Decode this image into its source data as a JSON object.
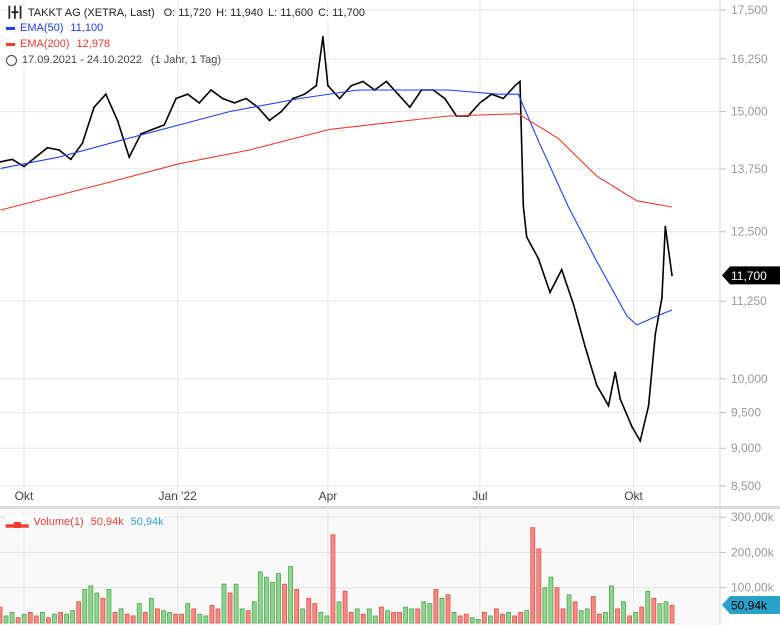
{
  "header": {
    "instrument": "TAKKT AG (XETRA, Last)",
    "open": "O: 11,720",
    "high": "H: 11,940",
    "low": "L: 11,600",
    "close": "C: 11,700",
    "ema50_label": "EMA(50)",
    "ema50_value": "11,100",
    "ema200_label": "EMA(200)",
    "ema200_value": "12,978",
    "range": "17.09.2021 - 24.10.2022",
    "period": "(1 Jahr, 1 Tag)",
    "icons": [
      "ohlc-bars-icon",
      "clock-icon",
      "volume-bars-icon"
    ]
  },
  "volume_legend": {
    "label": "Volume(1)",
    "value1": "50,94k",
    "value2": "50,94k"
  },
  "colors": {
    "ema50": "#1f3fff",
    "ema200": "#f03a2e",
    "price": "#000000",
    "up": "#8fd48f",
    "down": "#f68a84",
    "last_badge": "#000000",
    "volume_badge": "#2aa0c8"
  },
  "chart_data": [
    {
      "type": "line",
      "scale": "log",
      "ylim": [
        8250,
        17800
      ],
      "yticks": [
        "17,500",
        "16,250",
        "15,000",
        "13,750",
        "12,500",
        "11,250",
        "10,000",
        "9,500",
        "9,000",
        "8,500"
      ],
      "ytick_values": [
        17.5,
        16.25,
        15,
        13.75,
        12.5,
        11.25,
        10,
        9.5,
        9,
        8.5
      ],
      "xticks": [
        "Okt",
        "Jan '22",
        "Apr",
        "Jul",
        "Okt"
      ],
      "xtick_dates": [
        "2021-10-01",
        "2022-01-01",
        "2022-04-01",
        "2022-07-01",
        "2022-10-01"
      ],
      "grid": true,
      "last_price_label": "11,700",
      "last_price": 11.7,
      "series": [
        {
          "name": "TAKKT AG",
          "dates": [
            "2021-09-17",
            "2021-09-24",
            "2021-10-01",
            "2021-10-08",
            "2021-10-15",
            "2021-10-22",
            "2021-10-29",
            "2021-11-05",
            "2021-11-12",
            "2021-11-19",
            "2021-11-26",
            "2021-12-03",
            "2021-12-10",
            "2021-12-17",
            "2021-12-24",
            "2021-12-31",
            "2022-01-07",
            "2022-01-14",
            "2022-01-21",
            "2022-01-28",
            "2022-02-04",
            "2022-02-11",
            "2022-02-18",
            "2022-02-25",
            "2022-03-04",
            "2022-03-11",
            "2022-03-18",
            "2022-03-25",
            "2022-03-29",
            "2022-04-01",
            "2022-04-08",
            "2022-04-15",
            "2022-04-22",
            "2022-04-29",
            "2022-05-06",
            "2022-05-13",
            "2022-05-20",
            "2022-05-27",
            "2022-06-03",
            "2022-06-10",
            "2022-06-17",
            "2022-06-24",
            "2022-07-01",
            "2022-07-08",
            "2022-07-15",
            "2022-07-22",
            "2022-07-25",
            "2022-07-27",
            "2022-07-29",
            "2022-08-05",
            "2022-08-12",
            "2022-08-19",
            "2022-08-26",
            "2022-09-02",
            "2022-09-09",
            "2022-09-16",
            "2022-09-20",
            "2022-09-23",
            "2022-09-30",
            "2022-10-05",
            "2022-10-10",
            "2022-10-14",
            "2022-10-18",
            "2022-10-20",
            "2022-10-24"
          ],
          "values": [
            13.9,
            13.95,
            13.8,
            14.0,
            14.2,
            14.15,
            13.95,
            14.3,
            15.1,
            15.4,
            14.8,
            14.0,
            14.5,
            14.6,
            14.7,
            15.3,
            15.4,
            15.2,
            15.5,
            15.3,
            15.2,
            15.3,
            15.1,
            14.8,
            15.0,
            15.3,
            15.4,
            15.6,
            16.8,
            15.6,
            15.3,
            15.6,
            15.7,
            15.5,
            15.7,
            15.4,
            15.1,
            15.5,
            15.5,
            15.3,
            14.9,
            14.9,
            15.2,
            15.4,
            15.3,
            15.6,
            15.7,
            13.0,
            12.4,
            12.0,
            11.4,
            11.8,
            11.2,
            10.5,
            9.9,
            9.6,
            10.1,
            9.7,
            9.3,
            9.1,
            9.6,
            10.7,
            11.3,
            12.6,
            11.7
          ]
        },
        {
          "name": "EMA(50)",
          "dates": [
            "2021-09-17",
            "2021-10-22",
            "2021-11-27",
            "2022-01-02",
            "2022-02-01",
            "2022-03-15",
            "2022-04-19",
            "2022-06-12",
            "2022-07-12",
            "2022-07-24",
            "2022-08-05",
            "2022-08-23",
            "2022-09-09",
            "2022-09-27",
            "2022-10-03",
            "2022-10-15",
            "2022-10-24"
          ],
          "values": [
            13.76,
            14.0,
            14.35,
            14.7,
            15.0,
            15.3,
            15.5,
            15.5,
            15.4,
            15.4,
            14.35,
            12.98,
            11.95,
            11.0,
            10.85,
            11.0,
            11.1
          ]
        },
        {
          "name": "EMA(200)",
          "dates": [
            "2021-09-17",
            "2021-11-15",
            "2022-01-02",
            "2022-02-13",
            "2022-04-02",
            "2022-06-12",
            "2022-07-24",
            "2022-08-17",
            "2022-09-09",
            "2022-10-03",
            "2022-10-24"
          ],
          "values": [
            12.92,
            13.42,
            13.86,
            14.15,
            14.6,
            14.9,
            14.95,
            14.4,
            13.6,
            13.1,
            12.978
          ]
        }
      ]
    },
    {
      "type": "bar",
      "ylim": [
        0,
        300
      ],
      "yticks": [
        "300,00k",
        "200,00k",
        "100,00k"
      ],
      "ytick_values": [
        300,
        200,
        100
      ],
      "last_volume_label": "50,94k",
      "unit": "k",
      "values": [
        45,
        20,
        30,
        15,
        25,
        30,
        20,
        30,
        15,
        25,
        30,
        25,
        35,
        60,
        95,
        105,
        85,
        70,
        95,
        30,
        40,
        25,
        20,
        55,
        30,
        70,
        40,
        35,
        30,
        25,
        25,
        55,
        40,
        25,
        20,
        50,
        40,
        110,
        85,
        110,
        40,
        35,
        60,
        145,
        130,
        115,
        140,
        110,
        160,
        95,
        40,
        70,
        55,
        30,
        20,
        250,
        60,
        90,
        30,
        40,
        25,
        40,
        20,
        45,
        35,
        30,
        30,
        45,
        40,
        40,
        60,
        55,
        95,
        70,
        80,
        30,
        20,
        25,
        15,
        10,
        30,
        20,
        40,
        25,
        30,
        20,
        30,
        35,
        270,
        210,
        100,
        130,
        100,
        40,
        80,
        60,
        35,
        40,
        75,
        25,
        30,
        105,
        40,
        60,
        20,
        30,
        45,
        90,
        70,
        55,
        60,
        50
      ],
      "directions": "DUUDUDDUDUDUUDUUUDUDUDDUDUDUUDDUDUUDDUDUUDUUUUUDUDUDDUUDUDDUDUUDUDDUUDUUDUDUDDUUDUDDUDDUDDUUDDUDUUDDUUDUDUDUDUU"
    }
  ]
}
